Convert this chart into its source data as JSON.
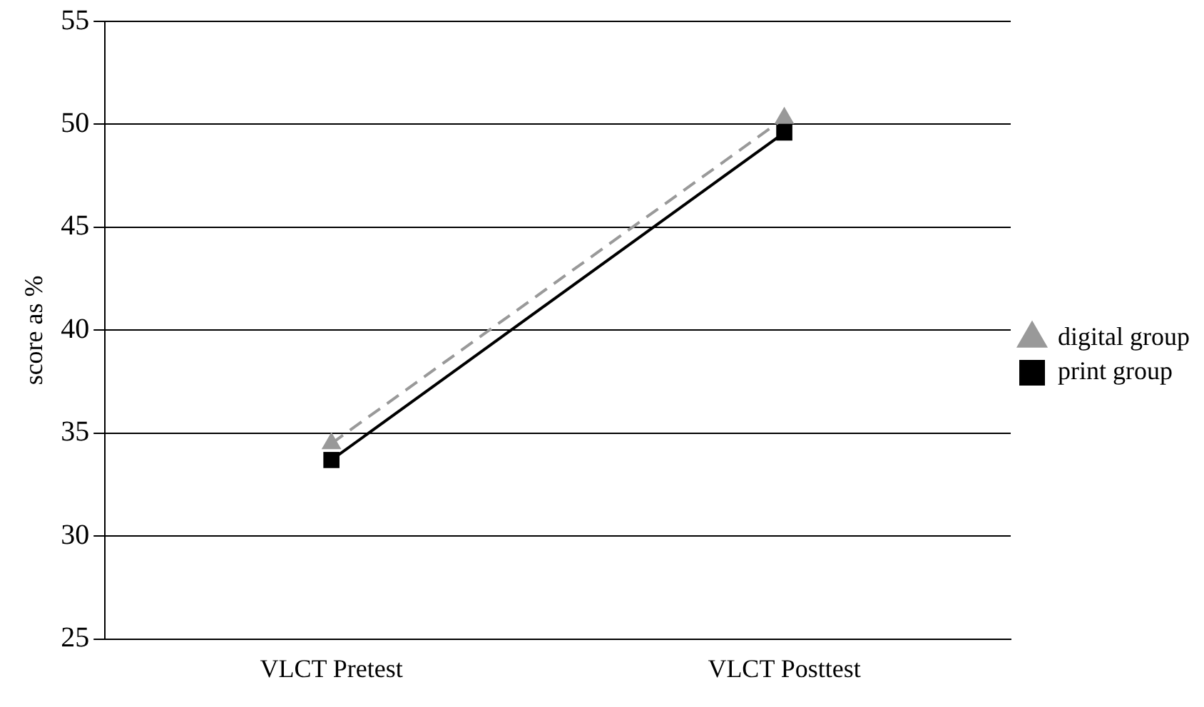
{
  "chart_data": {
    "type": "line",
    "ylabel": "score as %",
    "categories": [
      "VLCT Pretest",
      "VLCT Posttest"
    ],
    "series": [
      {
        "name": "digital group",
        "color": "#999999",
        "values": [
          34.5,
          50.3
        ],
        "marker": "triangle",
        "line_style": "dashed"
      },
      {
        "name": "print group",
        "color": "#000000",
        "values": [
          33.7,
          49.6
        ],
        "marker": "square",
        "line_style": "solid"
      }
    ],
    "ylim": [
      25,
      55
    ],
    "yticks": [
      25,
      30,
      35,
      40,
      45,
      50,
      55
    ],
    "grid": "y",
    "legend": "right"
  }
}
